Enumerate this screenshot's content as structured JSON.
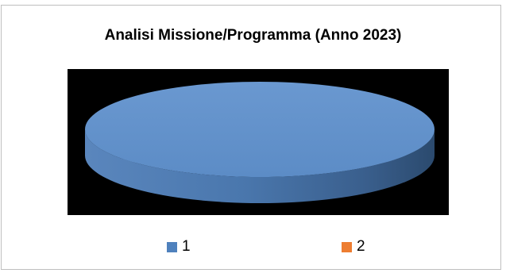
{
  "chart_data": {
    "type": "pie",
    "title": "Analisi Missione/Programma (Anno 2023)",
    "categories": [
      "1",
      "2"
    ],
    "values": [
      100,
      0
    ],
    "colors": [
      "#4f81bd",
      "#ed7d31"
    ],
    "background": "#000000",
    "legend": "bottom",
    "style": "3d"
  }
}
